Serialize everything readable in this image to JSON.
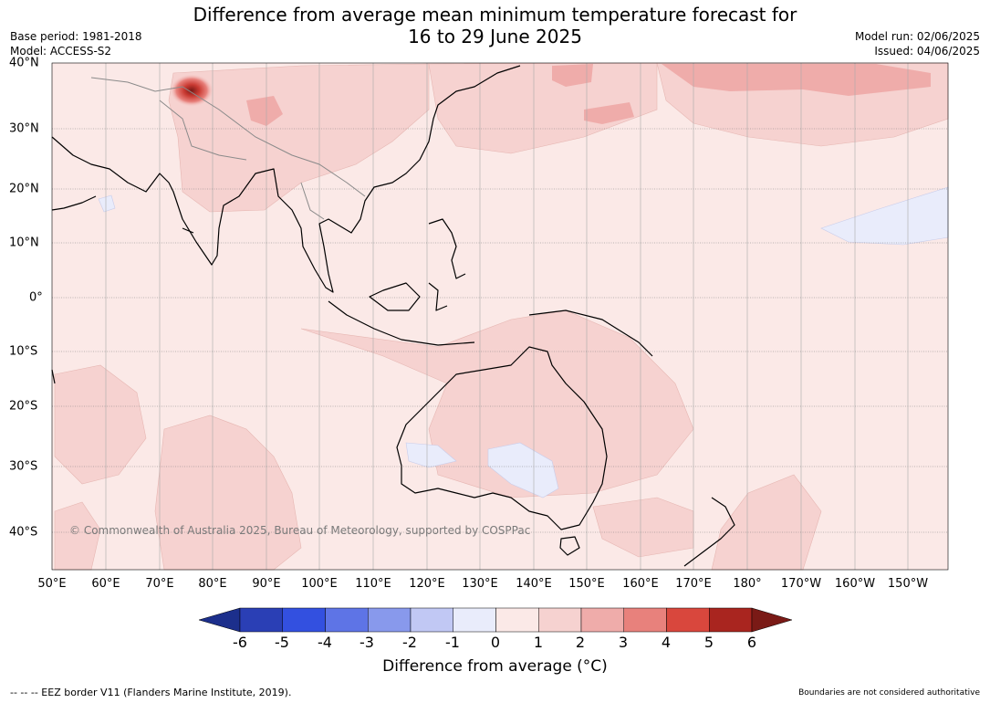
{
  "title_line1": "Difference from average mean minimum temperature forecast for",
  "title_line2": "16 to 29 June 2025",
  "base_period": "Base period: 1981-2018",
  "model": "Model: ACCESS-S2",
  "model_run": "Model run: 02/06/2025",
  "issued": "Issued: 04/06/2025",
  "copyright": "© Commonwealth of Australia 2025, Bureau of Meteorology, supported by COSPPac",
  "lon_labels": [
    "50°E",
    "60°E",
    "70°E",
    "80°E",
    "90°E",
    "100°E",
    "110°E",
    "120°E",
    "130°E",
    "140°E",
    "150°E",
    "160°E",
    "170°E",
    "180°",
    "170°W",
    "160°W",
    "150°W"
  ],
  "lat_labels": [
    "40°N",
    "30°N",
    "20°N",
    "10°N",
    "0°",
    "10°S",
    "20°S",
    "30°S",
    "40°S"
  ],
  "colorbar": {
    "label": "Difference from average (°C)",
    "ticks": [
      "-6",
      "-5",
      "-4",
      "-3",
      "-2",
      "-1",
      "0",
      "1",
      "2",
      "3",
      "4",
      "5",
      "6"
    ],
    "colors": [
      "#1c2f8c",
      "#2a3fb5",
      "#3350e0",
      "#5e74e6",
      "#8899ec",
      "#c1c8f4",
      "#e9ecfb",
      "#fbe9e7",
      "#f6d2d0",
      "#efacaa",
      "#e8817c",
      "#d9473d",
      "#a9251f",
      "#7a1a16"
    ]
  },
  "footer_left": "--  --  -- EEZ border V11 (Flanders Marine Institute, 2019).",
  "footer_right": "Boundaries are not considered authoritative"
}
